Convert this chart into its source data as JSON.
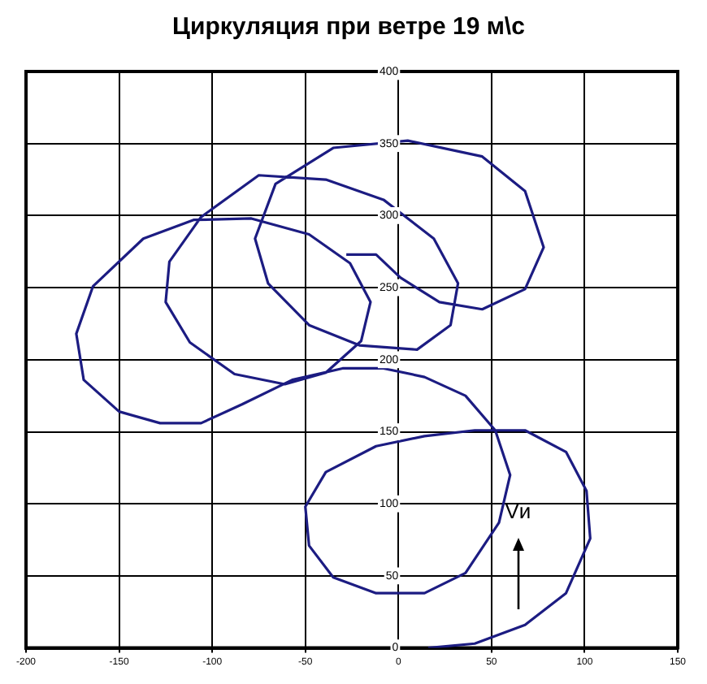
{
  "chart_data": {
    "type": "line",
    "title": "Циркуляция при ветре 19 м\\с",
    "annotations": [
      "Vи"
    ],
    "series": [
      {
        "color": "#1c1c82",
        "x": [
          16,
          41,
          68,
          90,
          103,
          101,
          90,
          68,
          41,
          14,
          -12,
          -39,
          -50,
          -48,
          -35,
          -12,
          14,
          36,
          54,
          60,
          52,
          36,
          14,
          -8,
          -30,
          -57,
          -84,
          -106,
          -128,
          -150,
          -169,
          -173,
          -164,
          -137,
          -110,
          -79,
          -48,
          -26,
          -15,
          -20,
          -39,
          -61,
          -88,
          -112,
          -125,
          -123,
          -106,
          -75,
          -39,
          -8,
          19,
          32,
          28,
          10,
          -21,
          -48,
          -70,
          -77,
          -66,
          -35,
          5,
          45,
          68,
          78,
          68,
          45,
          22,
          1,
          -12,
          -28
        ],
        "values": [
          0,
          3,
          16,
          38,
          76,
          109,
          136,
          151,
          151,
          147,
          140,
          122,
          98,
          71,
          49,
          38,
          38,
          52,
          87,
          120,
          151,
          175,
          188,
          194,
          194,
          186,
          169,
          156,
          156,
          164,
          186,
          218,
          251,
          284,
          297,
          298,
          287,
          267,
          240,
          213,
          191,
          183,
          190,
          212,
          240,
          268,
          299,
          328,
          325,
          311,
          284,
          253,
          224,
          207,
          210,
          224,
          253,
          284,
          322,
          347,
          352,
          341,
          317,
          278,
          249,
          235,
          240,
          257,
          273,
          273
        ]
      }
    ],
    "xlim": [
      -200,
      150
    ],
    "xticks": [
      -200,
      -150,
      -100,
      -50,
      0,
      50,
      100,
      150
    ],
    "ylim": [
      0,
      400
    ],
    "yticks": [
      0,
      50,
      100,
      150,
      200,
      250,
      300,
      350,
      400
    ],
    "grid": true,
    "marker": "none"
  }
}
